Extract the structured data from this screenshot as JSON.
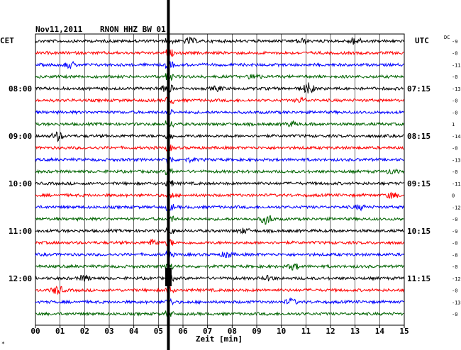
{
  "header": {
    "date": "Nov11,2011",
    "station": "RNON HHZ BW 01"
  },
  "timezones": {
    "left": "CET",
    "right": "UTC",
    "dc_label": "DC"
  },
  "xaxis": {
    "label": "Zeit [min]",
    "ticks": [
      "00",
      "01",
      "02",
      "03",
      "04",
      "05",
      "06",
      "07",
      "08",
      "09",
      "10",
      "11",
      "12",
      "13",
      "14",
      "15"
    ],
    "xlim": [
      0,
      15
    ]
  },
  "left_hours": [
    {
      "row": 4,
      "label": "08:00"
    },
    {
      "row": 8,
      "label": "09:00"
    },
    {
      "row": 12,
      "label": "10:00"
    },
    {
      "row": 16,
      "label": "11:00"
    },
    {
      "row": 20,
      "label": "12:00"
    }
  ],
  "right_hours": [
    {
      "row": 4,
      "label": "07:15"
    },
    {
      "row": 8,
      "label": "08:15"
    },
    {
      "row": 12,
      "label": "09:15"
    },
    {
      "row": 16,
      "label": "10:15"
    },
    {
      "row": 20,
      "label": "11:15"
    }
  ],
  "dc_values": [
    "-9",
    "-0",
    "-11",
    "-0",
    "-13",
    "-0",
    "-0",
    "1",
    "-14",
    "-0",
    "-13",
    "-0",
    "-11",
    "0",
    "-12",
    "-0",
    "-9",
    "-0",
    "-8",
    "-0",
    "-12",
    "-0",
    "-13",
    "-0"
  ],
  "trace_colors": [
    "#000000",
    "#ff0000",
    "#0000ff",
    "#006400"
  ],
  "event_time_min": 5.45,
  "corner_mark": "*",
  "chart_data": {
    "type": "line",
    "title": "Nov11,2011 RNON HHZ BW 01",
    "xlabel": "Zeit [min]",
    "ylabel": "",
    "grid": true,
    "traces": 24,
    "minutes_per_trace": 15
  }
}
